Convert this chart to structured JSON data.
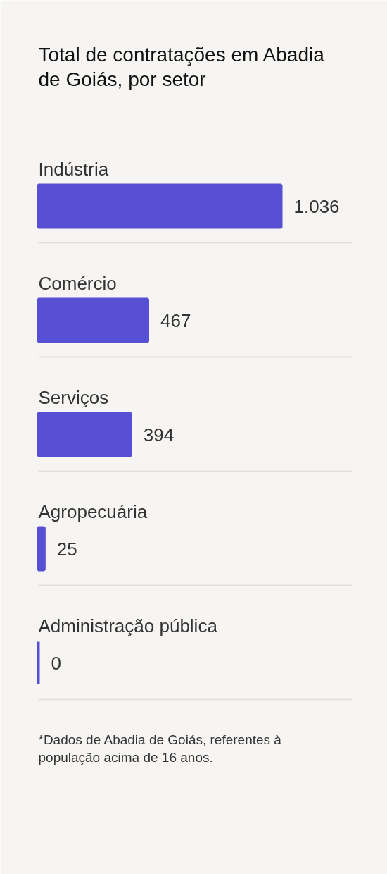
{
  "chart_data": {
    "type": "bar",
    "orientation": "horizontal",
    "title": "Total de contratações em Abadia de Goiás, por setor",
    "categories": [
      "Indústria",
      "Comércio",
      "Serviços",
      "Agropecuária",
      "Administração pública"
    ],
    "values": [
      1036,
      467,
      394,
      25,
      0
    ],
    "value_labels": [
      "1.036",
      "467",
      "394",
      "25",
      "0"
    ],
    "color": "#5850d4",
    "annotations": [
      "*Dados de Abadia de Goiás, referentes à população acima de 16 anos."
    ]
  }
}
